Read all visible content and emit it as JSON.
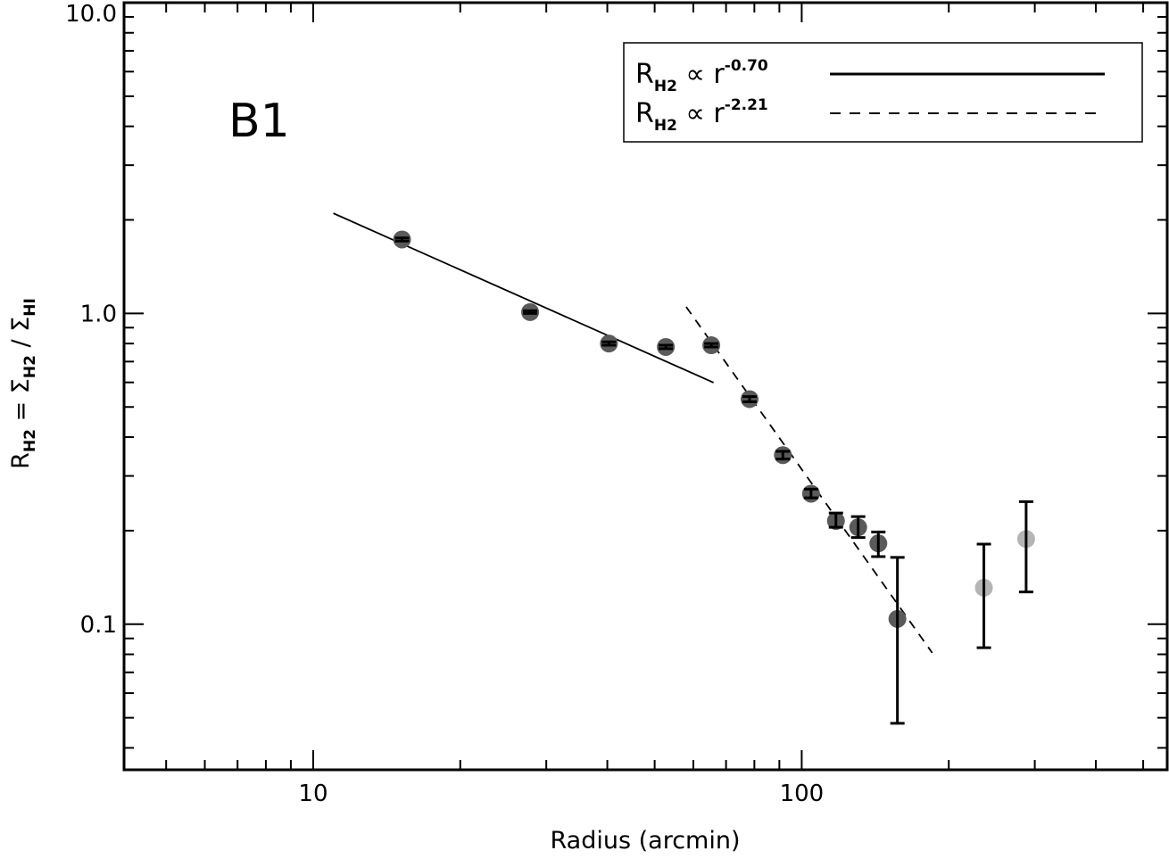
{
  "chart_data": {
    "type": "scatter",
    "panel_label": "B1",
    "xlabel": "Radius (arcmin)",
    "ylabel": {
      "r": "R",
      "r_sub": "H2",
      "eq": " = ",
      "s1": "Σ",
      "s1_sub": "H2",
      "slash": " / ",
      "s2": "Σ",
      "s2_sub": "HI"
    },
    "x_scale": "log",
    "y_scale": "log",
    "xlim": [
      4.1,
      560
    ],
    "ylim": [
      0.034,
      10.0
    ],
    "x_ticks": [
      {
        "value": 10,
        "label": "10"
      },
      {
        "value": 100,
        "label": "100"
      }
    ],
    "y_ticks": [
      {
        "value": 0.1,
        "label": "0.1"
      },
      {
        "value": 1.0,
        "label": "1.0"
      },
      {
        "value": 10.0,
        "label": "10.0"
      }
    ],
    "grid": false,
    "legend_position": "top-right",
    "legend": [
      {
        "label_base": "R",
        "label_sub": "H2",
        "label_mid": " ∝ r",
        "label_sup": "-0.70",
        "style": "solid"
      },
      {
        "label_base": "R",
        "label_sub": "H2",
        "label_mid": " ∝ r",
        "label_sup": "-2.21",
        "style": "dashed"
      }
    ],
    "fits": [
      {
        "name": "R_H2 ∝ r^-0.70",
        "style": "solid",
        "exponent": -0.7,
        "x_range": [
          11.0,
          66.0
        ],
        "y_start": 2.1
      },
      {
        "name": "R_H2 ∝ r^-2.21",
        "style": "dashed",
        "exponent": -2.21,
        "x_range": [
          58.0,
          185.0
        ],
        "y_start": 1.05
      }
    ],
    "points": [
      {
        "x": 15.2,
        "y": 1.73,
        "ylo": 1.71,
        "yhi": 1.75,
        "shade": "dark"
      },
      {
        "x": 27.8,
        "y": 1.01,
        "ylo": 1.0,
        "yhi": 1.02,
        "shade": "dark"
      },
      {
        "x": 40.3,
        "y": 0.8,
        "ylo": 0.79,
        "yhi": 0.81,
        "shade": "dark"
      },
      {
        "x": 52.7,
        "y": 0.78,
        "ylo": 0.77,
        "yhi": 0.79,
        "shade": "dark"
      },
      {
        "x": 65.3,
        "y": 0.79,
        "ylo": 0.78,
        "yhi": 0.8,
        "shade": "dark"
      },
      {
        "x": 78.2,
        "y": 0.53,
        "ylo": 0.52,
        "yhi": 0.54,
        "shade": "dark"
      },
      {
        "x": 91.5,
        "y": 0.35,
        "ylo": 0.34,
        "yhi": 0.36,
        "shade": "dark"
      },
      {
        "x": 104.5,
        "y": 0.263,
        "ylo": 0.255,
        "yhi": 0.272,
        "shade": "dark"
      },
      {
        "x": 117.5,
        "y": 0.215,
        "ylo": 0.205,
        "yhi": 0.228,
        "shade": "dark"
      },
      {
        "x": 130.5,
        "y": 0.205,
        "ylo": 0.19,
        "yhi": 0.222,
        "shade": "dark"
      },
      {
        "x": 143.5,
        "y": 0.182,
        "ylo": 0.165,
        "yhi": 0.198,
        "shade": "dark"
      },
      {
        "x": 157.0,
        "y": 0.104,
        "ylo": 0.048,
        "yhi": 0.164,
        "shade": "dark"
      },
      {
        "x": 236.0,
        "y": 0.131,
        "ylo": 0.084,
        "yhi": 0.181,
        "shade": "light"
      },
      {
        "x": 288.0,
        "y": 0.188,
        "ylo": 0.127,
        "yhi": 0.248,
        "shade": "light"
      }
    ],
    "colors": {
      "axis": "#000000",
      "point_dark": "#5a5a5a",
      "point_light": "#b4b4b4",
      "error_bar": "#000000"
    }
  }
}
